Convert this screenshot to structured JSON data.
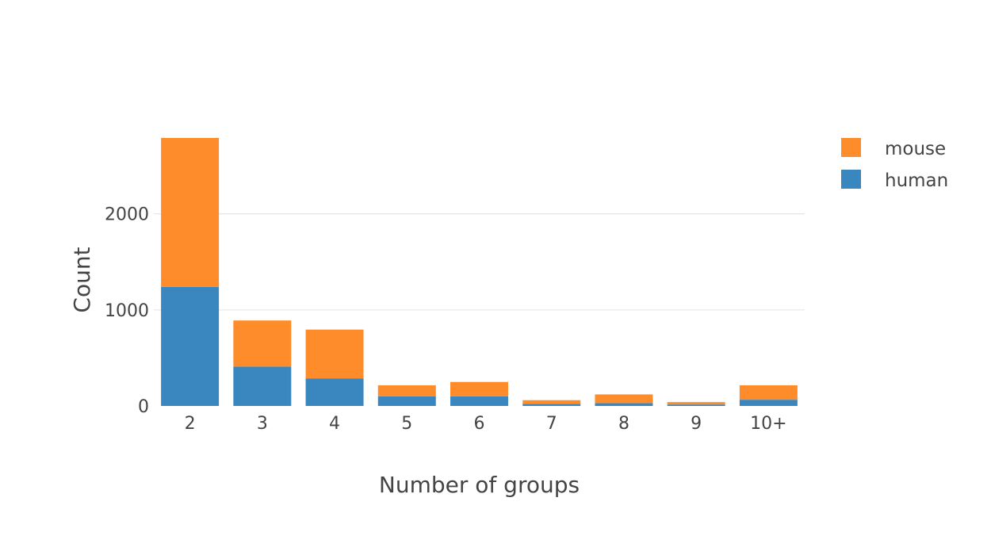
{
  "chart_data": {
    "type": "bar",
    "stacked": true,
    "title": "",
    "xlabel": "Number of groups",
    "ylabel": "Count",
    "categories": [
      "2",
      "3",
      "4",
      "5",
      "6",
      "7",
      "8",
      "9",
      "10+"
    ],
    "series": [
      {
        "name": "human",
        "color": "#3a87c0",
        "values": [
          1240,
          410,
          285,
          100,
          100,
          20,
          30,
          15,
          65
        ]
      },
      {
        "name": "mouse",
        "color": "#ff8c2a",
        "values": [
          1550,
          480,
          510,
          115,
          150,
          40,
          90,
          25,
          150
        ]
      }
    ],
    "ylim": [
      0,
      2790
    ],
    "yticks": [
      0,
      1000,
      2000
    ],
    "ytick_labels": [
      "0",
      "1000",
      "2000"
    ],
    "grid": true,
    "legend": {
      "position": "top-right",
      "order": [
        "mouse",
        "human"
      ]
    }
  }
}
